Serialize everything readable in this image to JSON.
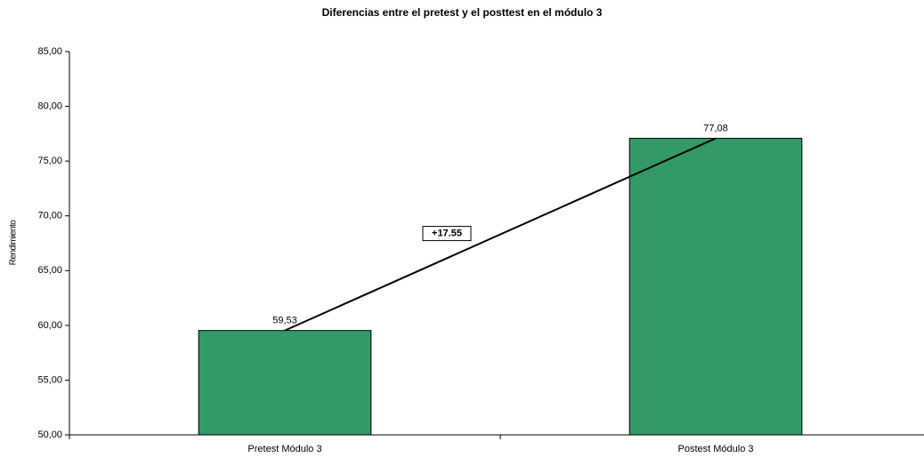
{
  "chart_data": {
    "type": "bar",
    "title": "Diferencias entre el pretest y el posttest en el módulo 3",
    "ylabel": "Rendimiento",
    "categories": [
      "Pretest Módulo 3",
      "Postest Módulo 3"
    ],
    "values": [
      59.53,
      77.08
    ],
    "value_labels": [
      "59,53",
      "77,08"
    ],
    "color": "#339966",
    "annotation": "+17.55",
    "ylim": [
      50,
      85
    ],
    "yticks": [
      {
        "value": 50,
        "label": "50,00"
      },
      {
        "value": 55,
        "label": "55,00"
      },
      {
        "value": 60,
        "label": "60,00"
      },
      {
        "value": 65,
        "label": "65,00"
      },
      {
        "value": 70,
        "label": "70,00"
      },
      {
        "value": 75,
        "label": "75,00"
      },
      {
        "value": 80,
        "label": "80,00"
      },
      {
        "value": 85,
        "label": "85,00"
      }
    ],
    "grid": false
  }
}
